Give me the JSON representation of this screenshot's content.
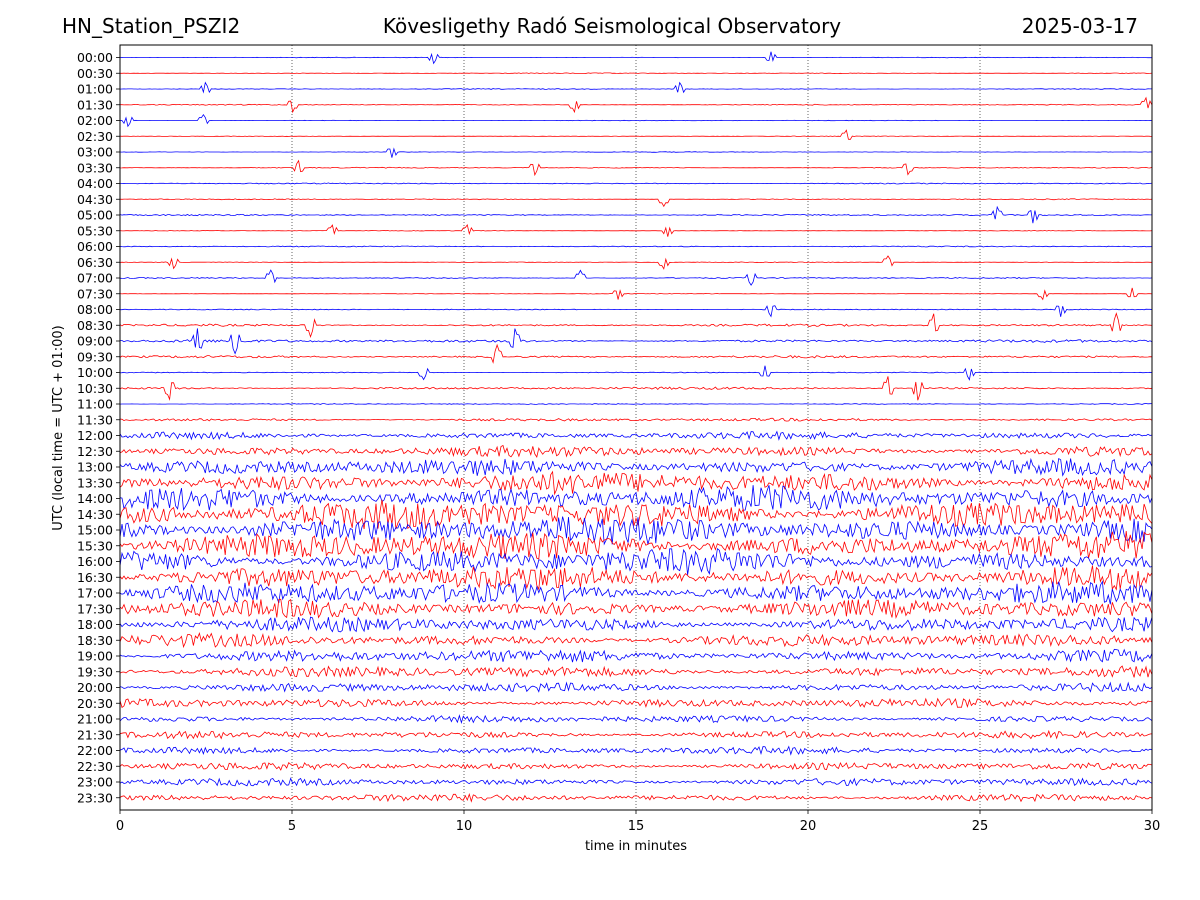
{
  "header": {
    "station": "HN_Station_PSZI2",
    "observatory": "Kövesligethy Radó Seismological Observatory",
    "date": "2025-03-17"
  },
  "chart_data": {
    "type": "line",
    "title": "Kövesligethy Radó Seismological Observatory",
    "xlabel": "time in minutes",
    "ylabel": "UTC (local time = UTC + 01:00)",
    "xlim": [
      0,
      30
    ],
    "xticks": [
      "0",
      "5",
      "10",
      "15",
      "20",
      "25",
      "30"
    ],
    "x_gridlines": [
      5,
      10,
      15,
      20,
      25
    ],
    "trace_labels": [
      "00:00",
      "00:30",
      "01:00",
      "01:30",
      "02:00",
      "02:30",
      "03:00",
      "03:30",
      "04:00",
      "04:30",
      "05:00",
      "05:30",
      "06:00",
      "06:30",
      "07:00",
      "07:30",
      "08:00",
      "08:30",
      "09:00",
      "09:30",
      "10:00",
      "10:30",
      "11:00",
      "11:30",
      "12:00",
      "12:30",
      "13:00",
      "13:30",
      "14:00",
      "14:30",
      "15:00",
      "15:30",
      "16:00",
      "16:30",
      "17:00",
      "17:30",
      "18:00",
      "18:30",
      "19:00",
      "19:30",
      "20:00",
      "20:30",
      "21:00",
      "21:30",
      "22:00",
      "22:30",
      "23:00",
      "23:30"
    ],
    "trace_colors": [
      "#0000ff",
      "#ff0000"
    ],
    "amplitude_profile": [
      0.3,
      0.4,
      0.4,
      0.5,
      0.3,
      0.3,
      0.3,
      0.5,
      0.6,
      0.5,
      0.7,
      0.3,
      0.6,
      0.4,
      0.6,
      0.3,
      0.5,
      1.2,
      1.5,
      1.3,
      0.5,
      1.3,
      0.5,
      1.6,
      4,
      6,
      9,
      12,
      14,
      16,
      16,
      15,
      14,
      13,
      12,
      10,
      8,
      7,
      7,
      6,
      5,
      5,
      4,
      4,
      4,
      4,
      4,
      4
    ]
  }
}
